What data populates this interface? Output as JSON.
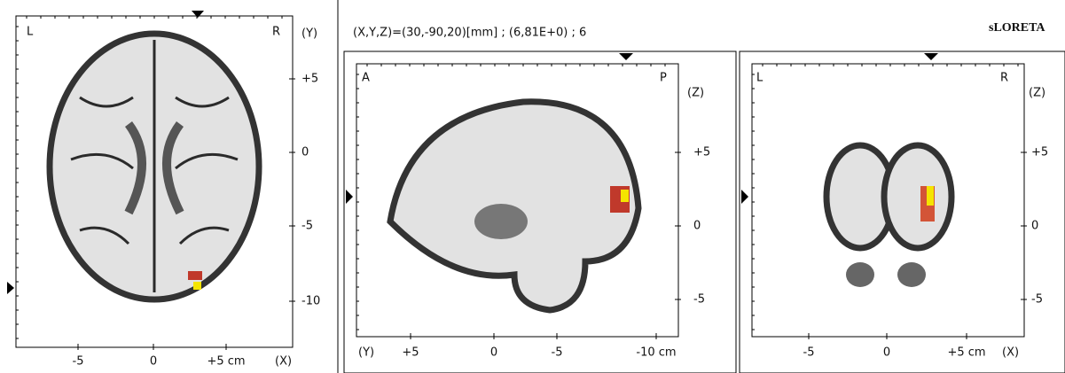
{
  "header": {
    "coords": "(X,Y,Z)=(30,-90,20)[mm]  ;  (6,81E+0)  ;  6",
    "app": "sLORETA"
  },
  "panels": [
    {
      "corner_left": "L",
      "corner_right": "R",
      "axis_right": "(Y)",
      "right_ticks": [
        "+5",
        "0",
        "-5",
        "-10"
      ],
      "bottom_axis": "(X)",
      "bottom_ticks": [
        "-5",
        "0",
        "+5 cm"
      ]
    },
    {
      "corner_left": "A",
      "corner_right": "P",
      "axis_right": "(Z)",
      "right_ticks": [
        "+5",
        "0",
        "-5"
      ],
      "bottom_axis": "(Y)",
      "bottom_ticks": [
        "+5",
        "0",
        "-5",
        "-10 cm"
      ]
    },
    {
      "corner_left": "L",
      "corner_right": "R",
      "axis_right": "(Z)",
      "right_ticks": [
        "+5",
        "0",
        "-5"
      ],
      "bottom_axis": "(X)",
      "bottom_ticks": [
        "-5",
        "0",
        "+5 cm"
      ]
    }
  ]
}
